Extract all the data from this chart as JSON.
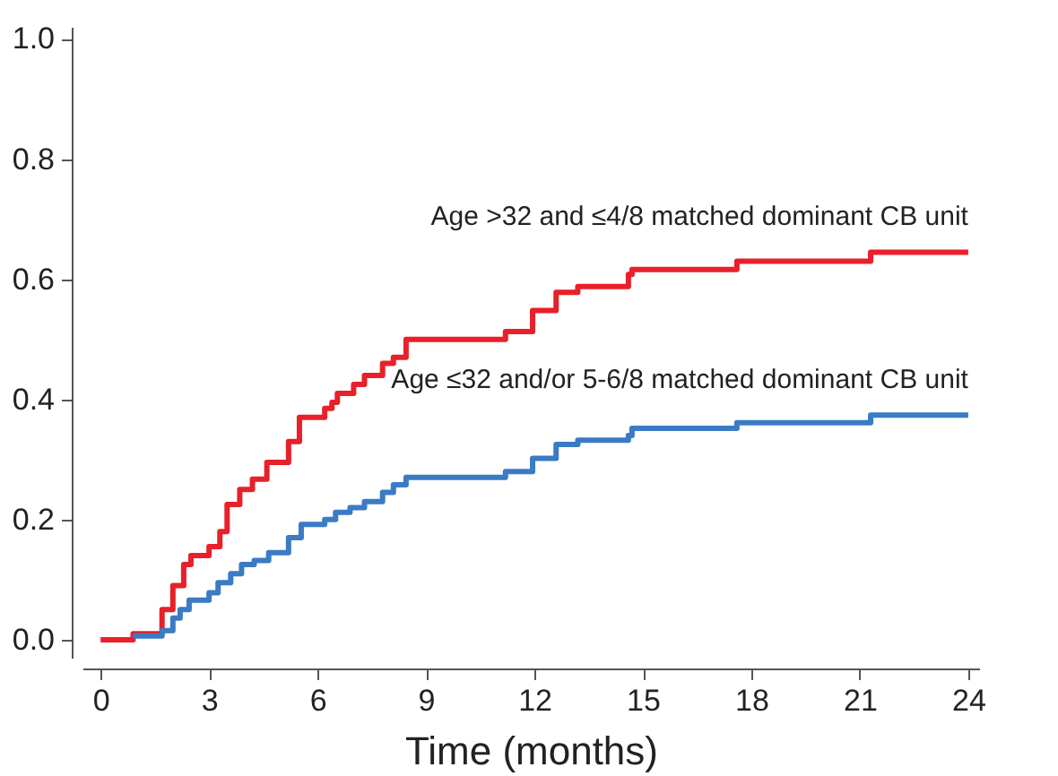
{
  "chart_data": {
    "type": "step",
    "xlabel": "Time (months)",
    "xlim": [
      -0.5,
      24.3
    ],
    "ylim": [
      -0.03,
      1.02
    ],
    "xticks": [
      0,
      3,
      6,
      9,
      12,
      15,
      18,
      21,
      24
    ],
    "yticks": [
      {
        "value": 0,
        "label": "0.0"
      },
      {
        "value": 0.2,
        "label": "0.2"
      },
      {
        "value": 0.4,
        "label": "0.4"
      },
      {
        "value": 0.6,
        "label": "0.6"
      },
      {
        "value": 0.8,
        "label": "0.8"
      },
      {
        "value": 1,
        "label": "1.0"
      }
    ],
    "grid": false,
    "legend": false,
    "series": [
      {
        "name": "Age >32 and ≤4/8 matched dominant CB unit",
        "color": "#e8202a",
        "x": [
          0,
          0.9,
          1.7,
          2.0,
          2.3,
          2.5,
          3.0,
          3.3,
          3.5,
          3.85,
          4.2,
          4.6,
          5.2,
          5.5,
          6.2,
          6.4,
          6.55,
          7.0,
          7.3,
          7.8,
          8.1,
          8.45,
          11.2,
          11.95,
          12.6,
          13.2,
          14.6,
          14.7,
          17.6,
          21.3,
          24
        ],
        "values": [
          0,
          0.01,
          0.05,
          0.09,
          0.125,
          0.14,
          0.155,
          0.18,
          0.225,
          0.25,
          0.267,
          0.295,
          0.33,
          0.37,
          0.385,
          0.395,
          0.41,
          0.425,
          0.44,
          0.46,
          0.47,
          0.5,
          0.513,
          0.548,
          0.578,
          0.588,
          0.608,
          0.616,
          0.63,
          0.645,
          0.645
        ]
      },
      {
        "name": "Age ≤32 and/or 5-6/8 matched dominant CB unit",
        "color": "#3a7bc4",
        "x": [
          0.9,
          1.7,
          2.0,
          2.2,
          2.45,
          3.0,
          3.25,
          3.6,
          3.9,
          4.25,
          4.65,
          5.2,
          5.55,
          6.2,
          6.5,
          6.9,
          7.3,
          7.8,
          8.1,
          8.45,
          11.2,
          11.95,
          12.6,
          13.2,
          14.6,
          14.7,
          17.6,
          21.3,
          24
        ],
        "values": [
          0.006,
          0.015,
          0.036,
          0.05,
          0.066,
          0.078,
          0.095,
          0.11,
          0.125,
          0.132,
          0.145,
          0.17,
          0.192,
          0.2,
          0.212,
          0.22,
          0.23,
          0.245,
          0.258,
          0.27,
          0.28,
          0.302,
          0.325,
          0.332,
          0.34,
          0.352,
          0.361,
          0.374,
          0.374
        ]
      }
    ]
  }
}
